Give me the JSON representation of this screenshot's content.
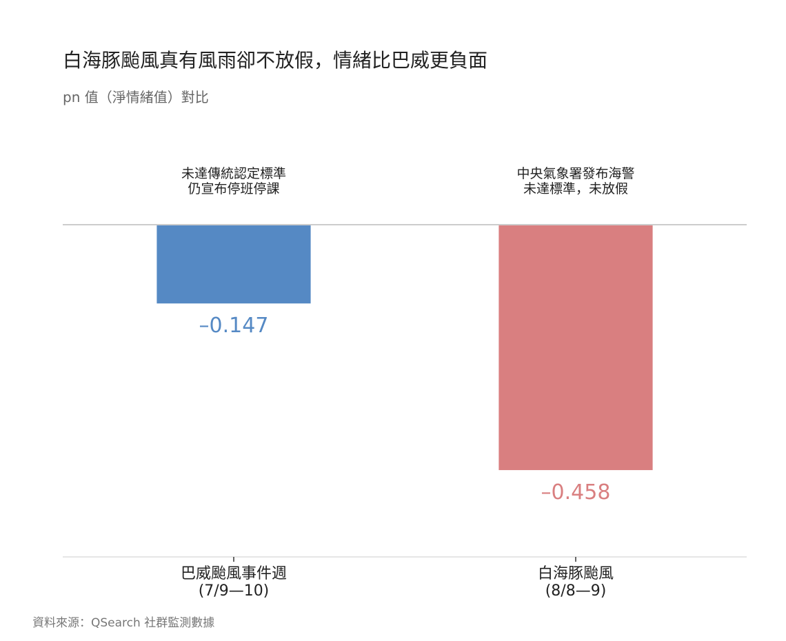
{
  "chart_data": {
    "type": "bar",
    "title": "白海豚颱風真有風雨卻不放假，情緒比巴威更負面",
    "subtitle": "pn 值（淨情緒值）對比",
    "categories": [
      "巴威颱風事件週\n(7/9—10)",
      "白海豚颱風\n(8/8—9)"
    ],
    "values": [
      -0.147,
      -0.458
    ],
    "value_labels": [
      "–0.147",
      "–0.458"
    ],
    "colors": [
      "#5589c4",
      "#d97f80"
    ],
    "annotations": [
      "未達傳統認定標準\n仍宣布停班停課",
      "中央氣象署發布海警\n未達標準，未放假"
    ],
    "ylim": [
      -0.62,
      0
    ],
    "source": "資料來源：QSearch 社群監測數據"
  }
}
